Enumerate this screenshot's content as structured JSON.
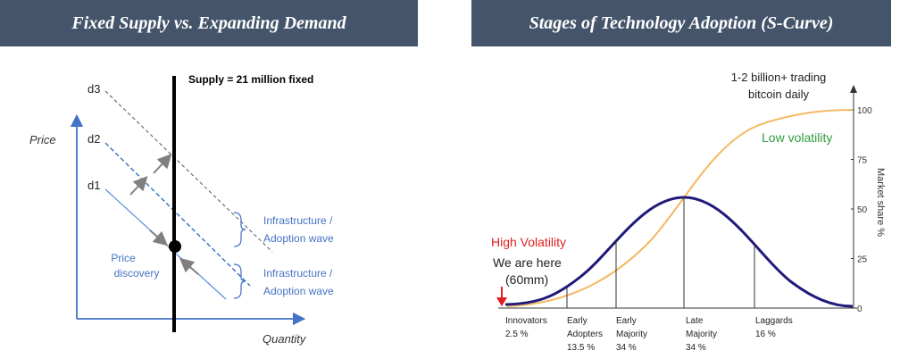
{
  "left_panel": {
    "title": "Fixed Supply vs. Expanding Demand",
    "price_label": "Price",
    "quantity_label": "Quantity",
    "supply_label": "Supply = 21 million fixed",
    "demand_labels": [
      "d3",
      "d2",
      "d1"
    ],
    "price_discovery": [
      "Price",
      "discovery"
    ],
    "brace_upper": [
      "Infrastructure /",
      "Adoption wave"
    ],
    "brace_lower": [
      "Infrastructure /",
      "Adoption wave"
    ]
  },
  "right_panel": {
    "title": "Stages of Technology Adoption (S-Curve)",
    "top_note": [
      "1-2 billion+ trading",
      "bitcoin daily"
    ],
    "low_volatility": "Low volatility",
    "high_volatility": "High Volatility",
    "we_are_here": [
      "We are here",
      "(60mm)"
    ],
    "y_axis_label": "Market share %",
    "categories": [
      {
        "lines": [
          "Innovators",
          "2.5 %"
        ]
      },
      {
        "lines": [
          "Early",
          "Adopters",
          "13.5 %"
        ]
      },
      {
        "lines": [
          "Early",
          "Majority",
          "34 %"
        ]
      },
      {
        "lines": [
          "Late",
          "Majority",
          "34 %"
        ]
      },
      {
        "lines": [
          "Laggards",
          "16 %"
        ]
      }
    ]
  },
  "chart_data": {
    "type": "line",
    "yticks": [
      0,
      25,
      50,
      75,
      100
    ],
    "ylabel": "Market share %",
    "ylim": [
      0,
      100
    ],
    "categories": [
      "Innovators",
      "Early Adopters",
      "Early Majority",
      "Late Majority",
      "Laggards"
    ],
    "adoption_share_percent": [
      2.5,
      13.5,
      34,
      34,
      16
    ],
    "cumulative_market_share_percent": [
      2.5,
      16,
      50,
      84,
      100
    ],
    "colors": {
      "adoption_curve": "#1f1a7a",
      "s_curve": "#f4b860",
      "low_volatility": "#2e9c3d",
      "high_volatility": "#e02020",
      "dashed_demand": "#4472c4",
      "accent": "#44546a"
    }
  }
}
